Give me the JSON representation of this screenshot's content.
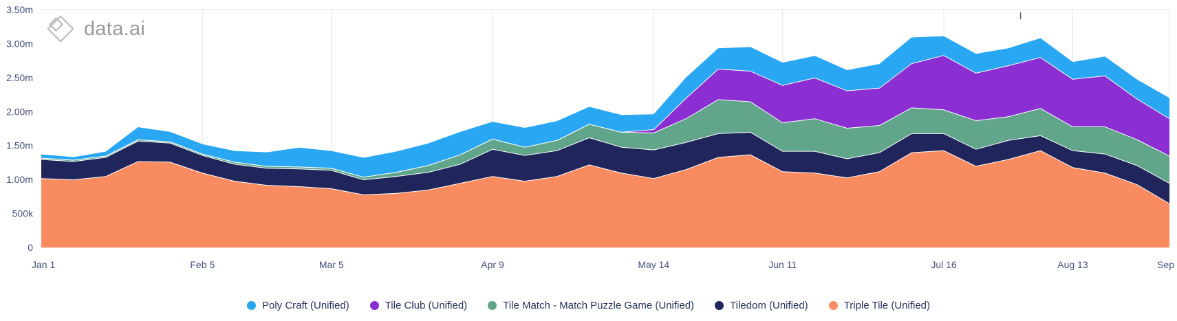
{
  "logo": {
    "text": "data.ai"
  },
  "artifacts": {
    "stray_text": "l"
  },
  "chart_data": {
    "type": "area",
    "stacked": true,
    "title": "",
    "xlabel": "",
    "ylabel": "",
    "ylim": [
      0,
      3.5
    ],
    "y_unit": "millions",
    "grid": "vertical-only",
    "legend_position": "bottom-center",
    "y_ticks": [
      {
        "value": 0,
        "label": "0"
      },
      {
        "value": 0.5,
        "label": "500k"
      },
      {
        "value": 1,
        "label": "1.00m"
      },
      {
        "value": 1.5,
        "label": "1.50m"
      },
      {
        "value": 2,
        "label": "2.00m"
      },
      {
        "value": 2.5,
        "label": "2.50m"
      },
      {
        "value": 3,
        "label": "3.00m"
      },
      {
        "value": 3.5,
        "label": "3.50m"
      }
    ],
    "x_ticks": [
      {
        "index": 0,
        "label": "Jan 1"
      },
      {
        "index": 5,
        "label": "Feb 5"
      },
      {
        "index": 9,
        "label": "Mar 5"
      },
      {
        "index": 14,
        "label": "Apr 9"
      },
      {
        "index": 19,
        "label": "May 14"
      },
      {
        "index": 23,
        "label": "Jun 11"
      },
      {
        "index": 28,
        "label": "Jul 16"
      },
      {
        "index": 32,
        "label": "Aug 13"
      },
      {
        "index": 35,
        "label": "Sep"
      }
    ],
    "series": [
      {
        "id": "triple-tile",
        "name": "Triple Tile (Unified)",
        "color": "#F98B61",
        "values": [
          1.02,
          1.0,
          1.05,
          1.27,
          1.26,
          1.1,
          0.98,
          0.92,
          0.9,
          0.87,
          0.78,
          0.8,
          0.85,
          0.95,
          1.05,
          0.98,
          1.05,
          1.22,
          1.1,
          1.02,
          1.15,
          1.33,
          1.37,
          1.12,
          1.1,
          1.03,
          1.12,
          1.4,
          1.43,
          1.2,
          1.3,
          1.43,
          1.18,
          1.1,
          0.93,
          0.65
        ]
      },
      {
        "id": "tiledom",
        "name": "Tiledom (Unified)",
        "color": "#20265B",
        "values": [
          0.28,
          0.27,
          0.28,
          0.3,
          0.28,
          0.26,
          0.25,
          0.25,
          0.26,
          0.27,
          0.22,
          0.25,
          0.26,
          0.28,
          0.4,
          0.38,
          0.38,
          0.4,
          0.38,
          0.42,
          0.4,
          0.35,
          0.33,
          0.3,
          0.32,
          0.28,
          0.28,
          0.28,
          0.25,
          0.25,
          0.28,
          0.22,
          0.25,
          0.28,
          0.28,
          0.3
        ]
      },
      {
        "id": "tile-match",
        "name": "Tile Match - Match Puzzle Game (Unified)",
        "color": "#61A58B",
        "values": [
          0.02,
          0.02,
          0.02,
          0.02,
          0.02,
          0.02,
          0.03,
          0.03,
          0.03,
          0.03,
          0.04,
          0.06,
          0.1,
          0.14,
          0.15,
          0.12,
          0.15,
          0.2,
          0.22,
          0.25,
          0.35,
          0.5,
          0.45,
          0.42,
          0.48,
          0.45,
          0.4,
          0.38,
          0.35,
          0.42,
          0.35,
          0.4,
          0.35,
          0.4,
          0.38,
          0.4
        ]
      },
      {
        "id": "tile-club",
        "name": "Tile Club (Unified)",
        "color": "#8B2FD3",
        "values": [
          0,
          0,
          0,
          0,
          0,
          0,
          0,
          0,
          0,
          0,
          0,
          0,
          0,
          0,
          0,
          0,
          0,
          0,
          0,
          0.05,
          0.3,
          0.45,
          0.45,
          0.55,
          0.6,
          0.55,
          0.55,
          0.65,
          0.8,
          0.7,
          0.75,
          0.75,
          0.7,
          0.75,
          0.6,
          0.55
        ]
      },
      {
        "id": "poly-craft",
        "name": "Poly Craft (Unified)",
        "color": "#29A7F3",
        "values": [
          0.05,
          0.04,
          0.06,
          0.18,
          0.14,
          0.14,
          0.16,
          0.2,
          0.28,
          0.25,
          0.28,
          0.3,
          0.32,
          0.33,
          0.25,
          0.28,
          0.28,
          0.25,
          0.25,
          0.22,
          0.3,
          0.3,
          0.35,
          0.33,
          0.32,
          0.3,
          0.35,
          0.38,
          0.28,
          0.28,
          0.25,
          0.28,
          0.25,
          0.28,
          0.28,
          0.3
        ]
      }
    ],
    "legend_order": [
      "poly-craft",
      "tile-club",
      "tile-match",
      "tiledom",
      "triple-tile"
    ]
  }
}
